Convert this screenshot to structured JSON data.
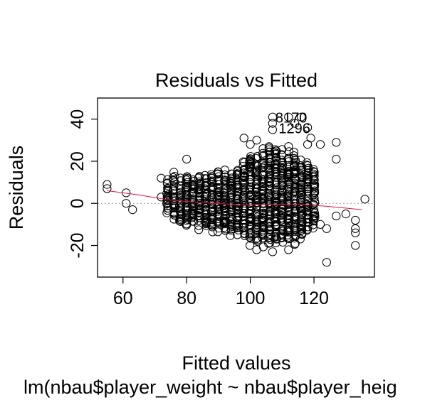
{
  "chart_data": {
    "type": "scatter",
    "title": "Residuals vs Fitted",
    "xlabel": "Fitted values",
    "ylabel": "Residuals",
    "subtitle": "lm(nbau$player_weight ~ nbau$player_heig",
    "xlim": [
      52,
      139
    ],
    "ylim": [
      -35,
      50
    ],
    "x_ticks": [
      60,
      80,
      100,
      120
    ],
    "y_ticks": [
      -20,
      0,
      20,
      40
    ],
    "x_tick_labels": [
      "60",
      "80",
      "100",
      "120"
    ],
    "y_tick_labels": [
      "-20",
      "0",
      "20",
      "40"
    ],
    "reference_line": 0,
    "grid": false,
    "legend": "none",
    "point_style": "open-circle",
    "colors": {
      "points": "#000000",
      "smoother": "#dc143c",
      "reference": "#999999"
    },
    "labeled_points": [
      {
        "label": "8170",
        "x": 107,
        "y": 41
      },
      {
        "label": "1296",
        "x": 108,
        "y": 36
      }
    ],
    "cluster": {
      "x_levels": [
        74,
        76,
        78,
        80,
        82,
        84,
        86,
        88,
        90,
        92,
        94,
        96,
        98,
        100,
        102,
        104,
        106,
        108,
        110,
        112,
        114,
        116,
        118,
        120
      ],
      "y_spread": [
        [
          -6,
          12
        ],
        [
          -8,
          15
        ],
        [
          -10,
          13
        ],
        [
          -12,
          16
        ],
        [
          -12,
          14
        ],
        [
          -13,
          15
        ],
        [
          -13,
          14
        ],
        [
          -14,
          16
        ],
        [
          -14,
          17
        ],
        [
          -15,
          18
        ],
        [
          -16,
          17
        ],
        [
          -17,
          19
        ],
        [
          -18,
          22
        ],
        [
          -20,
          25
        ],
        [
          -20,
          24
        ],
        [
          -21,
          27
        ],
        [
          -22,
          30
        ],
        [
          -21,
          28
        ],
        [
          -22,
          27
        ],
        [
          -21,
          26
        ],
        [
          -20,
          25
        ],
        [
          -18,
          22
        ],
        [
          -15,
          20
        ],
        [
          -12,
          18
        ]
      ]
    },
    "points": [
      {
        "x": 55,
        "y": 9
      },
      {
        "x": 55,
        "y": 7
      },
      {
        "x": 61,
        "y": 5
      },
      {
        "x": 61,
        "y": 0
      },
      {
        "x": 63,
        "y": -3
      },
      {
        "x": 72,
        "y": 12
      },
      {
        "x": 72,
        "y": 3
      },
      {
        "x": 80,
        "y": 21
      },
      {
        "x": 98,
        "y": 31
      },
      {
        "x": 100,
        "y": 28
      },
      {
        "x": 102,
        "y": 30
      },
      {
        "x": 104,
        "y": 26
      },
      {
        "x": 107,
        "y": 41
      },
      {
        "x": 107,
        "y": 38
      },
      {
        "x": 107,
        "y": 35
      },
      {
        "x": 112,
        "y": 41
      },
      {
        "x": 112,
        "y": 27
      },
      {
        "x": 114,
        "y": 38
      },
      {
        "x": 116,
        "y": 41
      },
      {
        "x": 118,
        "y": 36
      },
      {
        "x": 118,
        "y": 28
      },
      {
        "x": 119,
        "y": 31
      },
      {
        "x": 122,
        "y": 28
      },
      {
        "x": 127,
        "y": 29
      },
      {
        "x": 127,
        "y": 21
      },
      {
        "x": 122,
        "y": -10
      },
      {
        "x": 124,
        "y": -12
      },
      {
        "x": 124,
        "y": -28
      },
      {
        "x": 127,
        "y": -6
      },
      {
        "x": 130,
        "y": -5
      },
      {
        "x": 133,
        "y": -8
      },
      {
        "x": 133,
        "y": -12
      },
      {
        "x": 133,
        "y": -14
      },
      {
        "x": 133,
        "y": -20
      },
      {
        "x": 136,
        "y": 2
      },
      {
        "x": 102,
        "y": -22
      },
      {
        "x": 107,
        "y": -23
      },
      {
        "x": 112,
        "y": -22
      }
    ],
    "smoother": [
      {
        "x": 55,
        "y": 6
      },
      {
        "x": 65,
        "y": 4
      },
      {
        "x": 75,
        "y": 1.5
      },
      {
        "x": 85,
        "y": 0.3
      },
      {
        "x": 95,
        "y": -0.5
      },
      {
        "x": 105,
        "y": -0.6
      },
      {
        "x": 115,
        "y": -0.3
      },
      {
        "x": 125,
        "y": -1.5
      },
      {
        "x": 135,
        "y": -3
      }
    ]
  }
}
